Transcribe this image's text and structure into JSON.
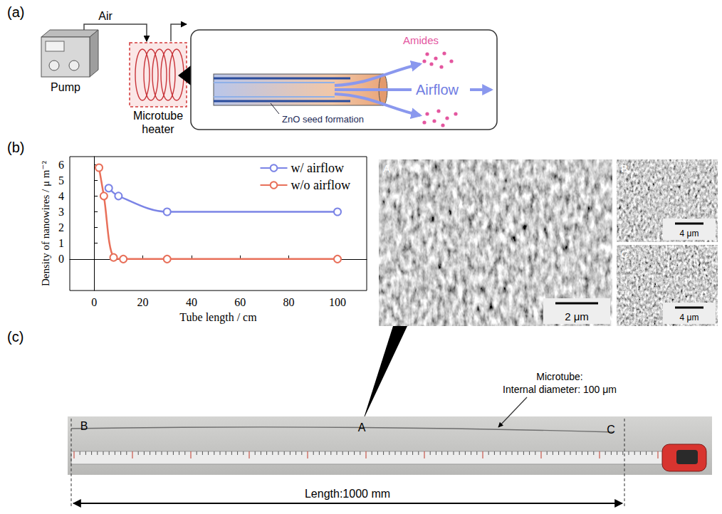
{
  "figure": {
    "panel_a": {
      "label": "(a)",
      "air": "Air",
      "pump": "Pump",
      "heater": "Microtube heater",
      "amides": "Amides",
      "airflow": "Airflow",
      "seed": "ZnO seed formation"
    },
    "panel_b": {
      "label": "(b)",
      "images": [
        {
          "label": "A",
          "scale": "2 μm"
        },
        {
          "label": "B",
          "scale": "4 μm"
        },
        {
          "label": "C",
          "scale": "4 μm"
        }
      ]
    },
    "panel_c": {
      "label": "(c)",
      "markers": [
        "B",
        "A",
        "C"
      ],
      "tube_note": [
        "Microtube:",
        "Internal diameter: 100 μm"
      ],
      "length": "Length:1000 mm"
    }
  },
  "chart_data": {
    "type": "line",
    "x_label": "Tube length / cm",
    "y_label": "Density of nanowires / μ m⁻²",
    "xlim": [
      -10,
      112
    ],
    "xticks": [
      0,
      20,
      40,
      60,
      80,
      100
    ],
    "ylim": [
      -2,
      6.5
    ],
    "yticks": [
      0,
      1,
      2,
      3,
      4,
      5,
      6
    ],
    "grid": false,
    "legend": "upper right",
    "series": [
      {
        "name": "w/ airflow",
        "color": "#7b84e6",
        "marker": "open circle",
        "line_style": "smooth",
        "x": [
          6,
          10,
          30,
          100
        ],
        "values": [
          4.5,
          4,
          3,
          3
        ]
      },
      {
        "name": "w/o airflow",
        "color": "#e8705a",
        "marker": "open circle",
        "line_style": "smooth",
        "x": [
          2,
          4,
          8,
          12,
          30,
          100
        ],
        "values": [
          5.8,
          4,
          0.1,
          0,
          0,
          0
        ]
      }
    ]
  }
}
